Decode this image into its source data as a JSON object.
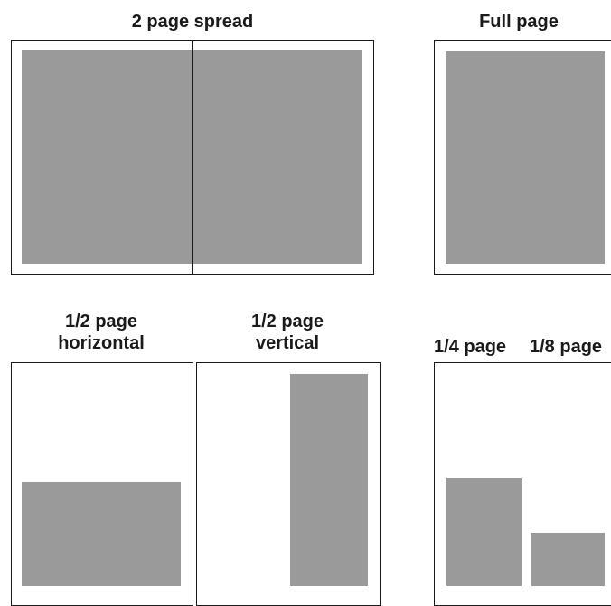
{
  "labels": {
    "spread": "2 page spread",
    "full": "Full page",
    "half_horizontal_line1": "1/2 page",
    "half_horizontal_line2": "horizontal",
    "half_vertical_line1": "1/2 page",
    "half_vertical_line2": "vertical",
    "quarter": "1/4 page",
    "eighth": "1/8 page"
  },
  "colors": {
    "ad_fill": "#9a9a9a",
    "page_border": "#1a1a1a",
    "background": "#ffffff"
  }
}
